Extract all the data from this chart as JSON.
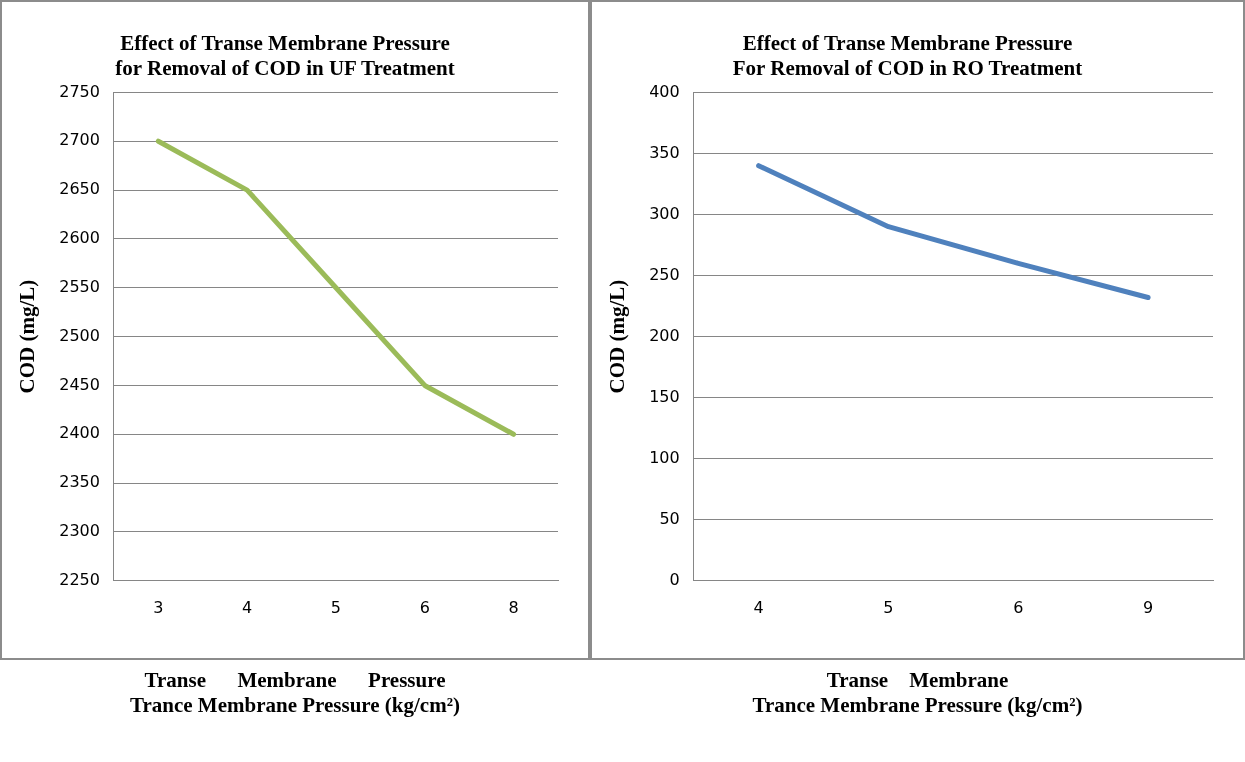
{
  "chart_data": [
    {
      "type": "line",
      "title": "Effect of Transe Membrane Pressure\nfor Removal of COD in UF Treatment",
      "xlabel": "Trance Membrane Pressure (kg/cm²)",
      "ylabel": "COD (mg/L)",
      "annotations": [
        "Transe      Membrane      Pressure"
      ],
      "categories": [
        "3",
        "4",
        "5",
        "6",
        "8"
      ],
      "series": [
        {
          "color": "#9bbb59",
          "values": [
            2700,
            2650,
            2550,
            2450,
            2400
          ]
        }
      ],
      "ylim": [
        2250,
        2750
      ],
      "yticks": [
        2250,
        2300,
        2350,
        2400,
        2450,
        2500,
        2550,
        2600,
        2650,
        2700,
        2750
      ],
      "grid": "y",
      "legend": false,
      "marker": "none",
      "line_style": "solid"
    },
    {
      "type": "line",
      "title": "Effect of Transe Membrane Pressure\nFor Removal of COD in RO Treatment",
      "xlabel": "Trance Membrane Pressure (kg/cm²)",
      "ylabel": "COD (mg/L)",
      "annotations": [
        "Transe    Membrane"
      ],
      "categories": [
        "4",
        "5",
        "6",
        "9"
      ],
      "series": [
        {
          "color": "#4f81bd",
          "values": [
            340,
            290,
            260,
            232
          ]
        }
      ],
      "ylim": [
        0,
        400
      ],
      "yticks": [
        0,
        50,
        100,
        150,
        200,
        250,
        300,
        350,
        400
      ],
      "grid": "y",
      "legend": false,
      "marker": "none",
      "line_style": "solid"
    }
  ]
}
